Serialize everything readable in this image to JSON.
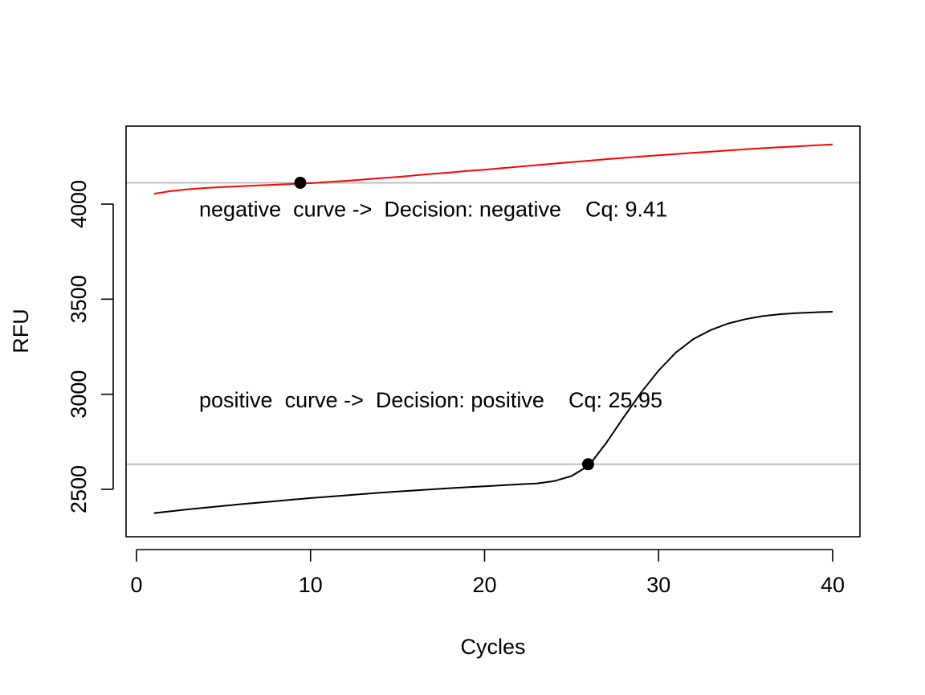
{
  "chart_data": {
    "type": "line",
    "xlabel": "Cycles",
    "ylabel": "RFU",
    "xlim": [
      0,
      40
    ],
    "ylim": [
      2330,
      4380
    ],
    "x_ticks": [
      0,
      10,
      20,
      30,
      40
    ],
    "y_ticks": [
      2500,
      3000,
      3500,
      4000
    ],
    "grid": false,
    "series": [
      {
        "color": "#ff0000",
        "x": [
          1,
          2,
          3,
          4,
          5,
          6,
          7,
          8,
          9,
          10,
          11,
          12,
          13,
          14,
          15,
          16,
          17,
          18,
          19,
          20,
          21,
          22,
          23,
          24,
          25,
          26,
          27,
          28,
          29,
          30,
          31,
          32,
          33,
          34,
          35,
          36,
          37,
          38,
          39,
          40
        ],
        "y": [
          4054,
          4069,
          4078,
          4085,
          4090,
          4094,
          4098,
          4102,
          4106,
          4110,
          4116,
          4122,
          4129,
          4136,
          4143,
          4151,
          4159,
          4166,
          4174,
          4181,
          4189,
          4197,
          4205,
          4213,
          4221,
          4228,
          4236,
          4243,
          4250,
          4257,
          4263,
          4270,
          4276,
          4282,
          4288,
          4294,
          4299,
          4304,
          4309,
          4314
        ],
        "cq": 9.41,
        "threshold": 4112
      },
      {
        "color": "#000000",
        "x": [
          1,
          2,
          3,
          4,
          5,
          6,
          7,
          8,
          9,
          10,
          11,
          12,
          13,
          14,
          15,
          16,
          17,
          18,
          19,
          20,
          21,
          22,
          23,
          24,
          25,
          26,
          27,
          28,
          29,
          30,
          31,
          32,
          33,
          34,
          35,
          36,
          37,
          38,
          39,
          40
        ],
        "y": [
          2375,
          2385,
          2395,
          2404,
          2413,
          2422,
          2430,
          2438,
          2446,
          2454,
          2461,
          2468,
          2475,
          2482,
          2488,
          2494,
          2500,
          2506,
          2511,
          2516,
          2521,
          2526,
          2531,
          2543,
          2570,
          2625,
          2745,
          2880,
          3010,
          3125,
          3220,
          3290,
          3338,
          3372,
          3395,
          3411,
          3421,
          3427,
          3431,
          3434
        ],
        "cq": 25.95,
        "threshold": 2632
      }
    ],
    "annotations": [
      {
        "text": "negative  curve ->  Decision: negative    Cq: 9.41",
        "x": 3.6,
        "y": 3935
      },
      {
        "text": "positive  curve ->  Decision: positive    Cq: 25.95",
        "x": 3.6,
        "y": 2930
      }
    ]
  }
}
